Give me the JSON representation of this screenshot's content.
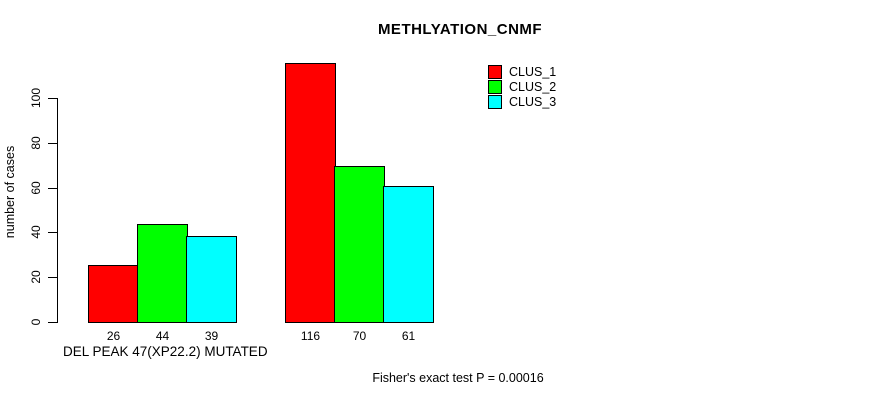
{
  "chart_data": {
    "type": "bar",
    "title": "METHLYATION_CNMF",
    "ylabel": "number of cases",
    "xlabel": "DEL PEAK 47(XP22.2) MUTATED",
    "ylim": [
      0,
      100
    ],
    "yticks": [
      0,
      20,
      40,
      60,
      80,
      100
    ],
    "grid": false,
    "legend_position": "top-right",
    "bar_value_labels": true,
    "series": [
      {
        "name": "CLUS_1",
        "color": "#ff0000"
      },
      {
        "name": "CLUS_2",
        "color": "#00ff00"
      },
      {
        "name": "CLUS_3",
        "color": "#00ffff"
      }
    ],
    "groups": [
      {
        "label": "DEL PEAK 47(XP22.2) MUTATED",
        "values": [
          26,
          44,
          39
        ]
      },
      {
        "label": "",
        "values": [
          116,
          70,
          61
        ]
      }
    ],
    "annotation": "Fisher's exact test P = 0.00016"
  }
}
